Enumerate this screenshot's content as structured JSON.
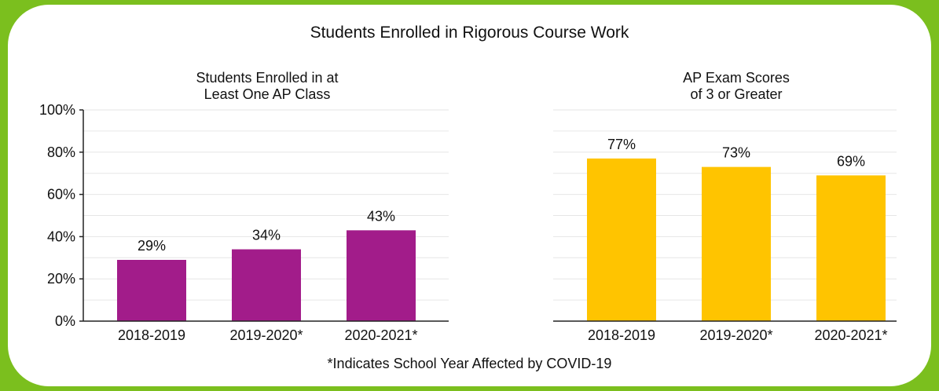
{
  "title": "Students Enrolled in Rigorous Course Work",
  "footnote": "*Indicates School Year Affected by COVID-19",
  "colors": {
    "background": "#7bbf1e",
    "card": "#ffffff",
    "grid": "#e6e6e6",
    "axis": "#222222"
  },
  "chart_data": [
    {
      "type": "bar",
      "title_lines": [
        "Students Enrolled in at",
        "Least One AP Class"
      ],
      "categories": [
        "2018-2019",
        "2019-2020*",
        "2020-2021*"
      ],
      "values": [
        29,
        34,
        43
      ],
      "value_labels": [
        "29%",
        "34%",
        "43%"
      ],
      "color": "#a21c8a",
      "ylim": [
        0,
        100
      ],
      "yticks": [
        0,
        20,
        40,
        60,
        80,
        100
      ],
      "ytick_labels": [
        "0%",
        "20%",
        "40%",
        "60%",
        "80%",
        "100%"
      ],
      "grid": true
    },
    {
      "type": "bar",
      "title_lines": [
        "AP Exam Scores",
        "of 3 or Greater"
      ],
      "categories": [
        "2018-2019",
        "2019-2020*",
        "2020-2021*"
      ],
      "values": [
        77,
        73,
        69
      ],
      "value_labels": [
        "77%",
        "73%",
        "69%"
      ],
      "color": "#ffc400",
      "ylim": [
        0,
        100
      ],
      "yticks": [],
      "ytick_labels": [],
      "grid": true
    }
  ]
}
